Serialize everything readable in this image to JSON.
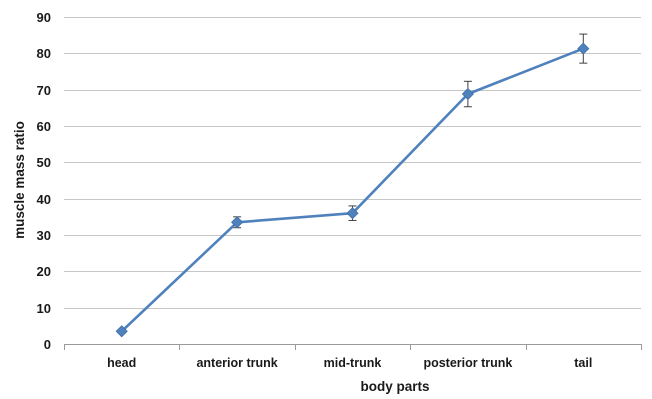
{
  "chart_data": {
    "type": "line",
    "title": "",
    "xlabel": "body parts",
    "ylabel": "muscle mass ratio",
    "categories": [
      "head",
      "anterior trunk",
      "mid-trunk",
      "posterior trunk",
      "tail"
    ],
    "series": [
      {
        "values": [
          3.5,
          33.5,
          36,
          68.8,
          81.3
        ],
        "error": [
          0.5,
          1.5,
          2,
          3.5,
          4
        ],
        "color": "#4f81bd",
        "marker": "diamond"
      }
    ],
    "ylim": [
      0,
      90
    ],
    "yticks": [
      0,
      10,
      20,
      30,
      40,
      50,
      60,
      70,
      80,
      90
    ],
    "grid": true,
    "legend": "none"
  }
}
